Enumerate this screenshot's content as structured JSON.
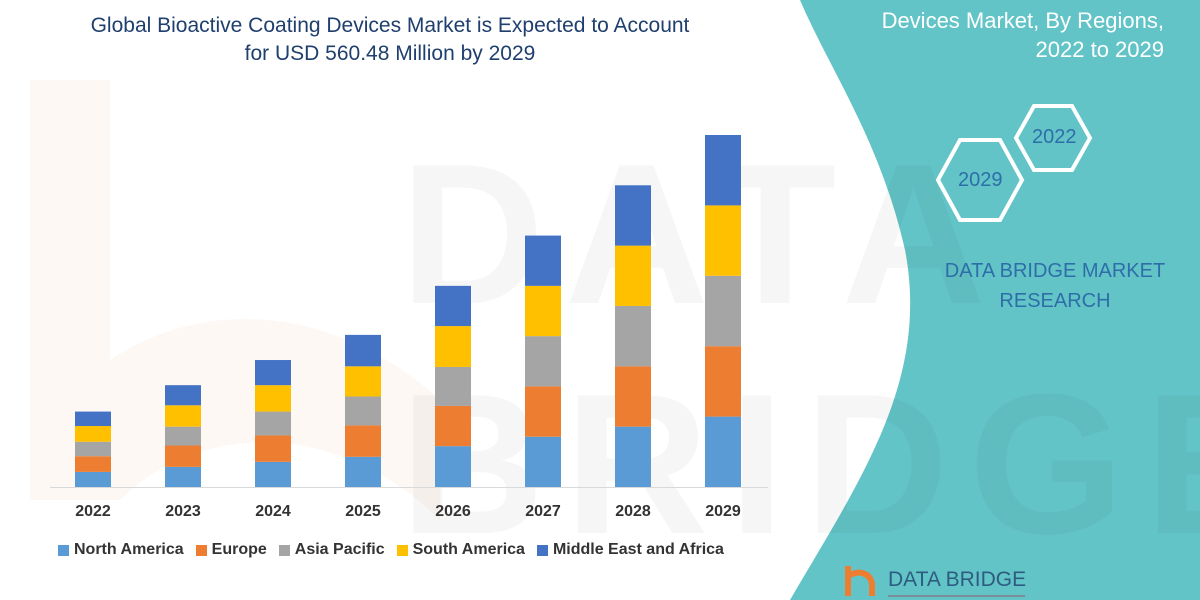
{
  "title_line1": "Global Bioactive Coating Devices Market is Expected to Account",
  "title_line2": "for USD 560.48 Million by 2029",
  "side_title_line1": "Devices Market, By Regions,",
  "side_title_line2": "2022 to 2029",
  "hex_top": "2022",
  "hex_bottom": "2029",
  "brand_line1": "DATA BRIDGE MARKET",
  "brand_line2": "RESEARCH",
  "logo_text": "DATA BRIDGE",
  "watermark": "DATA BRIDGE",
  "colors": {
    "teal": "#63c4c8",
    "accent_blue": "#2e6ea8"
  },
  "chart_data": {
    "type": "bar",
    "stacked": true,
    "title": "Global Bioactive Coating Devices Market is Expected to Account for USD 560.48 Million by 2029",
    "categories": [
      "2022",
      "2023",
      "2024",
      "2025",
      "2026",
      "2027",
      "2028",
      "2029"
    ],
    "series": [
      {
        "name": "North America",
        "color": "#5b9bd5",
        "values": [
          24,
          32,
          40,
          48,
          65,
          80,
          96,
          112
        ]
      },
      {
        "name": "Europe",
        "color": "#ed7d31",
        "values": [
          25,
          34,
          42,
          50,
          64,
          80,
          96,
          112
        ]
      },
      {
        "name": "Asia Pacific",
        "color": "#a5a5a5",
        "values": [
          23,
          30,
          38,
          46,
          62,
          80,
          96,
          112
        ]
      },
      {
        "name": "South America",
        "color": "#ffc000",
        "values": [
          25,
          34,
          42,
          48,
          65,
          80,
          96,
          112
        ]
      },
      {
        "name": "Middle East and Africa",
        "color": "#4472c4",
        "values": [
          23,
          32,
          40,
          50,
          64,
          80,
          96,
          112
        ]
      }
    ],
    "y_axis_shown": false,
    "grid": false,
    "legend_position": "bottom"
  }
}
